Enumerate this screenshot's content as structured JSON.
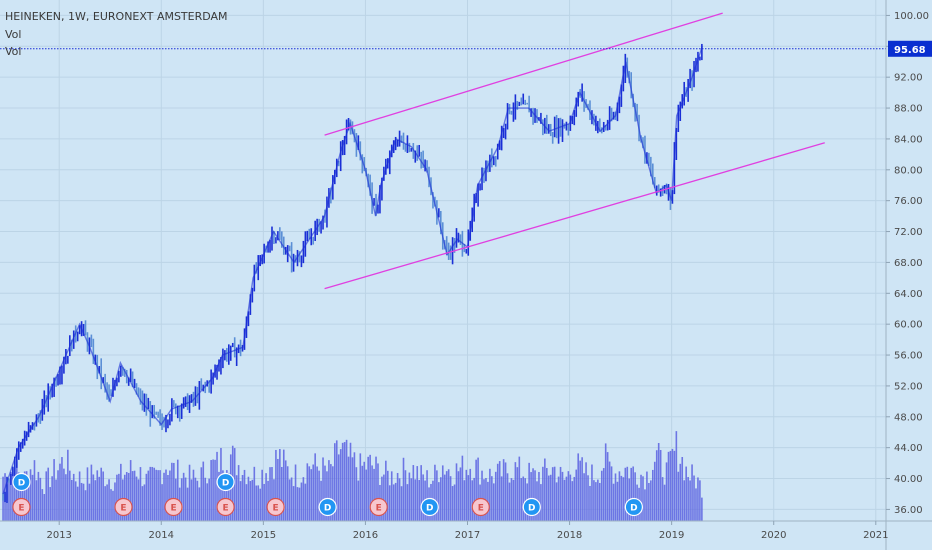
{
  "header": {
    "title": "HEINEKEN, 1W, EURONEXT AMSTERDAM",
    "lines": [
      "Vol",
      "Vol"
    ]
  },
  "colors": {
    "background": "#cfe5f5",
    "price_up": "#1a2fd6",
    "price_down": "#5b8fd6",
    "volume": "#5a62e0",
    "channel": "#e040e0",
    "price_line": "#1a2fd6",
    "price_badge": "#0a2fd0",
    "earnings_marker": "#d9534f",
    "dividend_marker": "#2196f3"
  },
  "chart_data": {
    "type": "line",
    "symbol": "HEINEKEN",
    "interval": "1W",
    "exchange": "EURONEXT AMSTERDAM",
    "last_price": "95.68",
    "y_ticks": [
      "100.00",
      "96.00",
      "92.00",
      "88.00",
      "84.00",
      "80.00",
      "76.00",
      "72.00",
      "68.00",
      "64.00",
      "60.00",
      "56.00",
      "52.00",
      "48.00",
      "44.00",
      "40.00",
      "36.00"
    ],
    "x_ticks": [
      "2013",
      "2014",
      "2015",
      "2016",
      "2017",
      "2018",
      "2019",
      "2020",
      "2021"
    ],
    "ylim": [
      34.5,
      102
    ],
    "xlim": [
      2012.42,
      2021.1
    ],
    "price": {
      "x": [
        2012.45,
        2012.6,
        2012.8,
        2013.0,
        2013.2,
        2013.3,
        2013.5,
        2013.6,
        2013.8,
        2014.0,
        2014.1,
        2014.3,
        2014.5,
        2014.6,
        2014.8,
        2014.9,
        2015.1,
        2015.2,
        2015.3,
        2015.5,
        2015.6,
        2015.75,
        2015.85,
        2016.0,
        2016.1,
        2016.15,
        2016.3,
        2016.45,
        2016.6,
        2016.8,
        2016.9,
        2017.0,
        2017.1,
        2017.3,
        2017.4,
        2017.6,
        2017.8,
        2018.0,
        2018.1,
        2018.3,
        2018.45,
        2018.55,
        2018.7,
        2018.85,
        2018.95,
        2019.0,
        2019.05,
        2019.2,
        2019.3
      ],
      "y": [
        38,
        44,
        48,
        54,
        60,
        57,
        50,
        55,
        50,
        47,
        49,
        50,
        53,
        56,
        57,
        66,
        72,
        70,
        68,
        72,
        74,
        82,
        86,
        80,
        74,
        78,
        84,
        83,
        80,
        69,
        71,
        70,
        78,
        83,
        88,
        88,
        85,
        86,
        90,
        85,
        87,
        94,
        84,
        77,
        78,
        76,
        87,
        92,
        96
      ]
    },
    "volume": {
      "x": [
        2012.45,
        2012.55,
        2012.65,
        2012.75,
        2012.85,
        2012.95,
        2013.05,
        2013.15,
        2013.25,
        2013.35,
        2013.45,
        2013.55,
        2013.65,
        2013.75,
        2013.85,
        2013.95,
        2014.05,
        2014.15,
        2014.25,
        2014.35,
        2014.45,
        2014.55,
        2014.65,
        2014.75,
        2014.85,
        2014.95,
        2015.05,
        2015.15,
        2015.25,
        2015.35,
        2015.45,
        2015.55,
        2015.65,
        2015.75,
        2015.85,
        2015.95,
        2016.05,
        2016.15,
        2016.25,
        2016.35,
        2016.45,
        2016.55,
        2016.65,
        2016.75,
        2016.85,
        2016.95,
        2017.05,
        2017.15,
        2017.25,
        2017.35,
        2017.45,
        2017.55,
        2017.65,
        2017.75,
        2017.85,
        2017.95,
        2018.05,
        2018.15,
        2018.25,
        2018.35,
        2018.45,
        2018.55,
        2018.65,
        2018.75,
        2018.85,
        2018.95,
        2019.05,
        2019.15,
        2019.25,
        2019.3
      ],
      "values": [
        0.55,
        0.65,
        0.5,
        0.7,
        0.45,
        0.6,
        0.75,
        0.55,
        0.5,
        0.6,
        0.55,
        0.5,
        0.6,
        0.65,
        0.5,
        0.55,
        0.7,
        0.6,
        0.55,
        0.5,
        0.65,
        0.7,
        0.85,
        0.7,
        0.6,
        0.55,
        0.65,
        0.8,
        0.6,
        0.55,
        0.7,
        0.65,
        0.6,
        0.9,
        0.75,
        0.65,
        0.7,
        0.6,
        0.55,
        0.6,
        0.65,
        0.55,
        0.5,
        0.7,
        0.6,
        0.65,
        0.7,
        0.6,
        0.55,
        0.6,
        0.65,
        0.6,
        0.55,
        0.6,
        0.65,
        0.5,
        0.7,
        0.6,
        0.55,
        0.75,
        0.6,
        0.65,
        0.6,
        0.55,
        0.8,
        0.6,
        0.9,
        0.6,
        0.5,
        0.4
      ]
    },
    "channel": [
      {
        "x": [
          2015.6,
          2019.5
        ],
        "y": [
          84.5,
          100.3
        ]
      },
      {
        "x": [
          2015.6,
          2020.5
        ],
        "y": [
          64.6,
          83.5
        ]
      }
    ],
    "events": [
      {
        "type": "D",
        "x": 2012.63,
        "row": 1
      },
      {
        "type": "E",
        "x": 2012.63,
        "row": 2
      },
      {
        "type": "E",
        "x": 2013.63,
        "row": 2
      },
      {
        "type": "E",
        "x": 2014.12,
        "row": 2
      },
      {
        "type": "D",
        "x": 2014.63,
        "row": 1
      },
      {
        "type": "E",
        "x": 2014.63,
        "row": 2
      },
      {
        "type": "E",
        "x": 2015.12,
        "row": 2
      },
      {
        "type": "D",
        "x": 2015.63,
        "row": 2
      },
      {
        "type": "E",
        "x": 2016.13,
        "row": 2
      },
      {
        "type": "D",
        "x": 2016.63,
        "row": 2
      },
      {
        "type": "E",
        "x": 2017.13,
        "row": 2
      },
      {
        "type": "D",
        "x": 2017.63,
        "row": 2
      },
      {
        "type": "D",
        "x": 2018.63,
        "row": 2
      }
    ]
  }
}
